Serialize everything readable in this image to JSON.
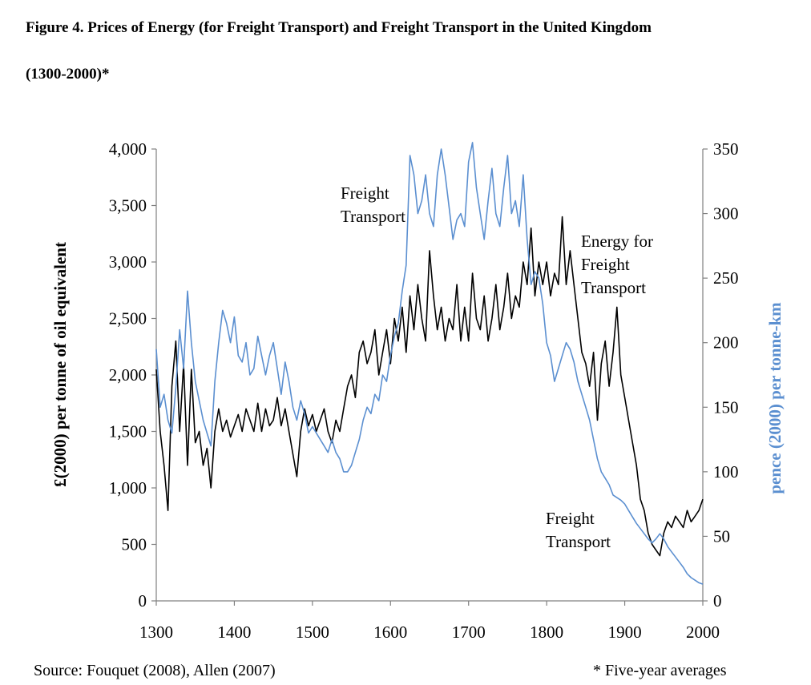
{
  "title_line1": "Figure 4. Prices of Energy (for Freight Transport) and Freight Transport in the United Kingdom",
  "title_line2": "(1300-2000)*",
  "source": "Source: Fouquet (2008), Allen (2007)",
  "footnote": "* Five-year averages",
  "colors": {
    "energy": "#000000",
    "freight": "#5b8fd0",
    "axis": "#808080"
  },
  "chart_data": {
    "type": "line",
    "xlim": [
      1300,
      2000
    ],
    "x_ticks": [
      1300,
      1400,
      1500,
      1600,
      1700,
      1800,
      1900,
      2000
    ],
    "ylabel_left": "£(2000) per tonne of oil equivalent",
    "ylabel_right": "pence (2000) per tonne-km",
    "ylim_left": [
      0,
      4000
    ],
    "ylim_right": [
      0,
      350
    ],
    "y_ticks_left": [
      "0",
      "500",
      "1,000",
      "1,500",
      "2,000",
      "2,500",
      "3,000",
      "3,500",
      "4,000"
    ],
    "y_ticks_right": [
      "0",
      "50",
      "100",
      "150",
      "200",
      "250",
      "300",
      "350"
    ],
    "annotations": [
      {
        "lines": [
          "Freight",
          "Transport"
        ]
      },
      {
        "lines": [
          "Energy for",
          "Freight",
          "Transport"
        ]
      },
      {
        "lines": [
          "Freight",
          "Transport"
        ]
      }
    ],
    "series": [
      {
        "axis": "left",
        "x": [
          1300,
          1305,
          1310,
          1315,
          1320,
          1325,
          1330,
          1335,
          1340,
          1345,
          1350,
          1355,
          1360,
          1365,
          1370,
          1375,
          1380,
          1385,
          1390,
          1395,
          1400,
          1405,
          1410,
          1415,
          1420,
          1425,
          1430,
          1435,
          1440,
          1445,
          1450,
          1455,
          1460,
          1465,
          1470,
          1475,
          1480,
          1485,
          1490,
          1495,
          1500,
          1505,
          1510,
          1515,
          1520,
          1525,
          1530,
          1535,
          1540,
          1545,
          1550,
          1555,
          1560,
          1565,
          1570,
          1575,
          1580,
          1585,
          1590,
          1595,
          1600,
          1605,
          1610,
          1615,
          1620,
          1625,
          1630,
          1635,
          1640,
          1645,
          1650,
          1655,
          1660,
          1665,
          1670,
          1675,
          1680,
          1685,
          1690,
          1695,
          1700,
          1705,
          1710,
          1715,
          1720,
          1725,
          1730,
          1735,
          1740,
          1745,
          1750,
          1755,
          1760,
          1765,
          1770,
          1775,
          1780,
          1785,
          1790,
          1795,
          1800,
          1805,
          1810,
          1815,
          1820,
          1825,
          1830,
          1835,
          1840,
          1845,
          1850,
          1855,
          1860,
          1865,
          1870,
          1875,
          1880,
          1885,
          1890,
          1895,
          1900,
          1905,
          1910,
          1915,
          1920,
          1925,
          1930,
          1935,
          1940,
          1945,
          1950,
          1955,
          1960,
          1965,
          1970,
          1975,
          1980,
          1985,
          1990,
          1995,
          2000
        ],
        "values": [
          2050,
          1500,
          1200,
          800,
          1900,
          2300,
          1500,
          2100,
          1200,
          2050,
          1400,
          1500,
          1200,
          1350,
          1000,
          1500,
          1700,
          1500,
          1600,
          1450,
          1550,
          1650,
          1500,
          1700,
          1600,
          1500,
          1750,
          1500,
          1700,
          1550,
          1600,
          1800,
          1550,
          1700,
          1500,
          1300,
          1100,
          1500,
          1700,
          1550,
          1650,
          1500,
          1600,
          1700,
          1500,
          1400,
          1600,
          1500,
          1700,
          1900,
          2000,
          1800,
          2200,
          2300,
          2100,
          2200,
          2400,
          2000,
          2200,
          2400,
          2100,
          2500,
          2300,
          2600,
          2200,
          2700,
          2400,
          2800,
          2500,
          2300,
          3100,
          2700,
          2400,
          2600,
          2300,
          2500,
          2400,
          2800,
          2300,
          2600,
          2300,
          2900,
          2500,
          2400,
          2700,
          2300,
          2500,
          2800,
          2400,
          2600,
          2900,
          2500,
          2700,
          2600,
          3000,
          2800,
          3300,
          2700,
          3000,
          2800,
          3000,
          2700,
          2900,
          2800,
          3400,
          2800,
          3100,
          2800,
          2500,
          2200,
          2100,
          1900,
          2200,
          1600,
          2100,
          2300,
          1900,
          2200,
          2600,
          2000,
          1800,
          1600,
          1400,
          1200,
          900,
          800,
          600,
          500,
          450,
          400,
          600,
          700,
          650,
          750,
          700,
          650,
          800,
          700,
          750,
          800,
          900
        ]
      },
      {
        "axis": "right",
        "x": [
          1300,
          1305,
          1310,
          1315,
          1320,
          1325,
          1330,
          1335,
          1340,
          1345,
          1350,
          1355,
          1360,
          1365,
          1370,
          1375,
          1380,
          1385,
          1390,
          1395,
          1400,
          1405,
          1410,
          1415,
          1420,
          1425,
          1430,
          1435,
          1440,
          1445,
          1450,
          1455,
          1460,
          1465,
          1470,
          1475,
          1480,
          1485,
          1490,
          1495,
          1500,
          1505,
          1510,
          1515,
          1520,
          1525,
          1530,
          1535,
          1540,
          1545,
          1550,
          1555,
          1560,
          1565,
          1570,
          1575,
          1580,
          1585,
          1590,
          1595,
          1600,
          1605,
          1610,
          1615,
          1620,
          1625,
          1630,
          1635,
          1640,
          1645,
          1650,
          1655,
          1660,
          1665,
          1670,
          1675,
          1680,
          1685,
          1690,
          1695,
          1700,
          1705,
          1710,
          1715,
          1720,
          1725,
          1730,
          1735,
          1740,
          1745,
          1750,
          1755,
          1760,
          1765,
          1770,
          1775,
          1780,
          1785,
          1790,
          1795,
          1800,
          1805,
          1810,
          1815,
          1820,
          1825,
          1830,
          1835,
          1840,
          1845,
          1850,
          1855,
          1860,
          1865,
          1870,
          1875,
          1880,
          1885,
          1890,
          1895,
          1900,
          1905,
          1910,
          1915,
          1920,
          1925,
          1930,
          1935,
          1940,
          1945,
          1950,
          1955,
          1960,
          1965,
          1970,
          1975,
          1980,
          1985,
          1990,
          1995,
          2000
        ],
        "values": [
          195,
          150,
          160,
          140,
          130,
          165,
          210,
          180,
          240,
          200,
          170,
          155,
          140,
          130,
          120,
          170,
          200,
          225,
          215,
          200,
          220,
          190,
          185,
          200,
          175,
          180,
          205,
          190,
          175,
          190,
          200,
          180,
          160,
          185,
          170,
          150,
          140,
          155,
          145,
          130,
          135,
          130,
          125,
          120,
          115,
          125,
          115,
          110,
          100,
          100,
          105,
          115,
          125,
          140,
          150,
          145,
          160,
          155,
          175,
          170,
          190,
          205,
          215,
          240,
          260,
          345,
          330,
          300,
          310,
          330,
          300,
          290,
          330,
          350,
          330,
          305,
          280,
          295,
          300,
          290,
          340,
          355,
          320,
          300,
          280,
          310,
          335,
          300,
          290,
          320,
          345,
          300,
          310,
          290,
          330,
          280,
          245,
          255,
          250,
          230,
          200,
          190,
          170,
          180,
          190,
          200,
          195,
          185,
          170,
          160,
          150,
          140,
          125,
          110,
          100,
          95,
          90,
          82,
          80,
          78,
          75,
          70,
          65,
          60,
          56,
          52,
          48,
          45,
          48,
          52,
          48,
          42,
          38,
          34,
          30,
          26,
          21,
          18,
          16,
          14,
          13
        ]
      }
    ]
  }
}
